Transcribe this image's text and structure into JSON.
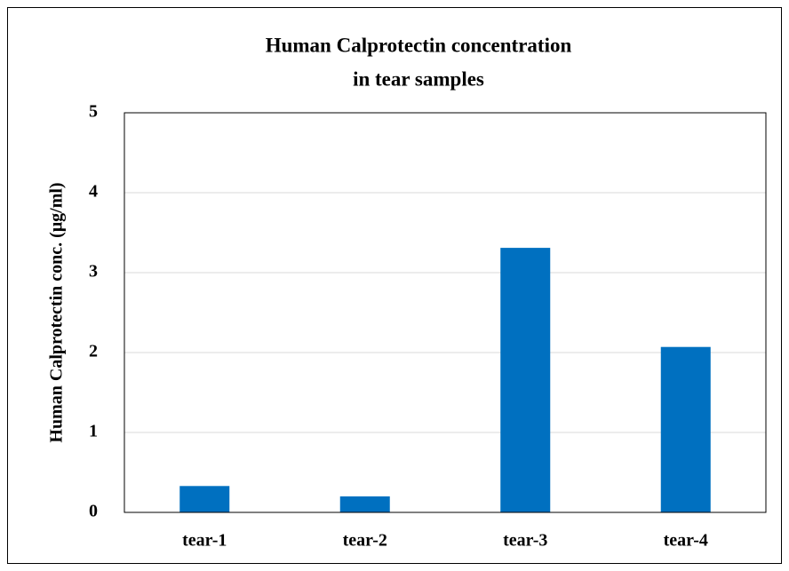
{
  "chart_data": {
    "type": "bar",
    "title": [
      "Human  Calprotectin concentration",
      "in tear samples"
    ],
    "ylabel": "Human  Calprotectin conc. (μg/ml)",
    "categories": [
      "tear-1",
      "tear-2",
      "tear-3",
      "tear-4"
    ],
    "values": [
      0.33,
      0.2,
      3.31,
      2.07
    ],
    "color": "#0070c0",
    "ylim": [
      0,
      5
    ],
    "yticks": [
      0,
      1,
      2,
      3,
      4,
      5
    ],
    "grid": true
  }
}
